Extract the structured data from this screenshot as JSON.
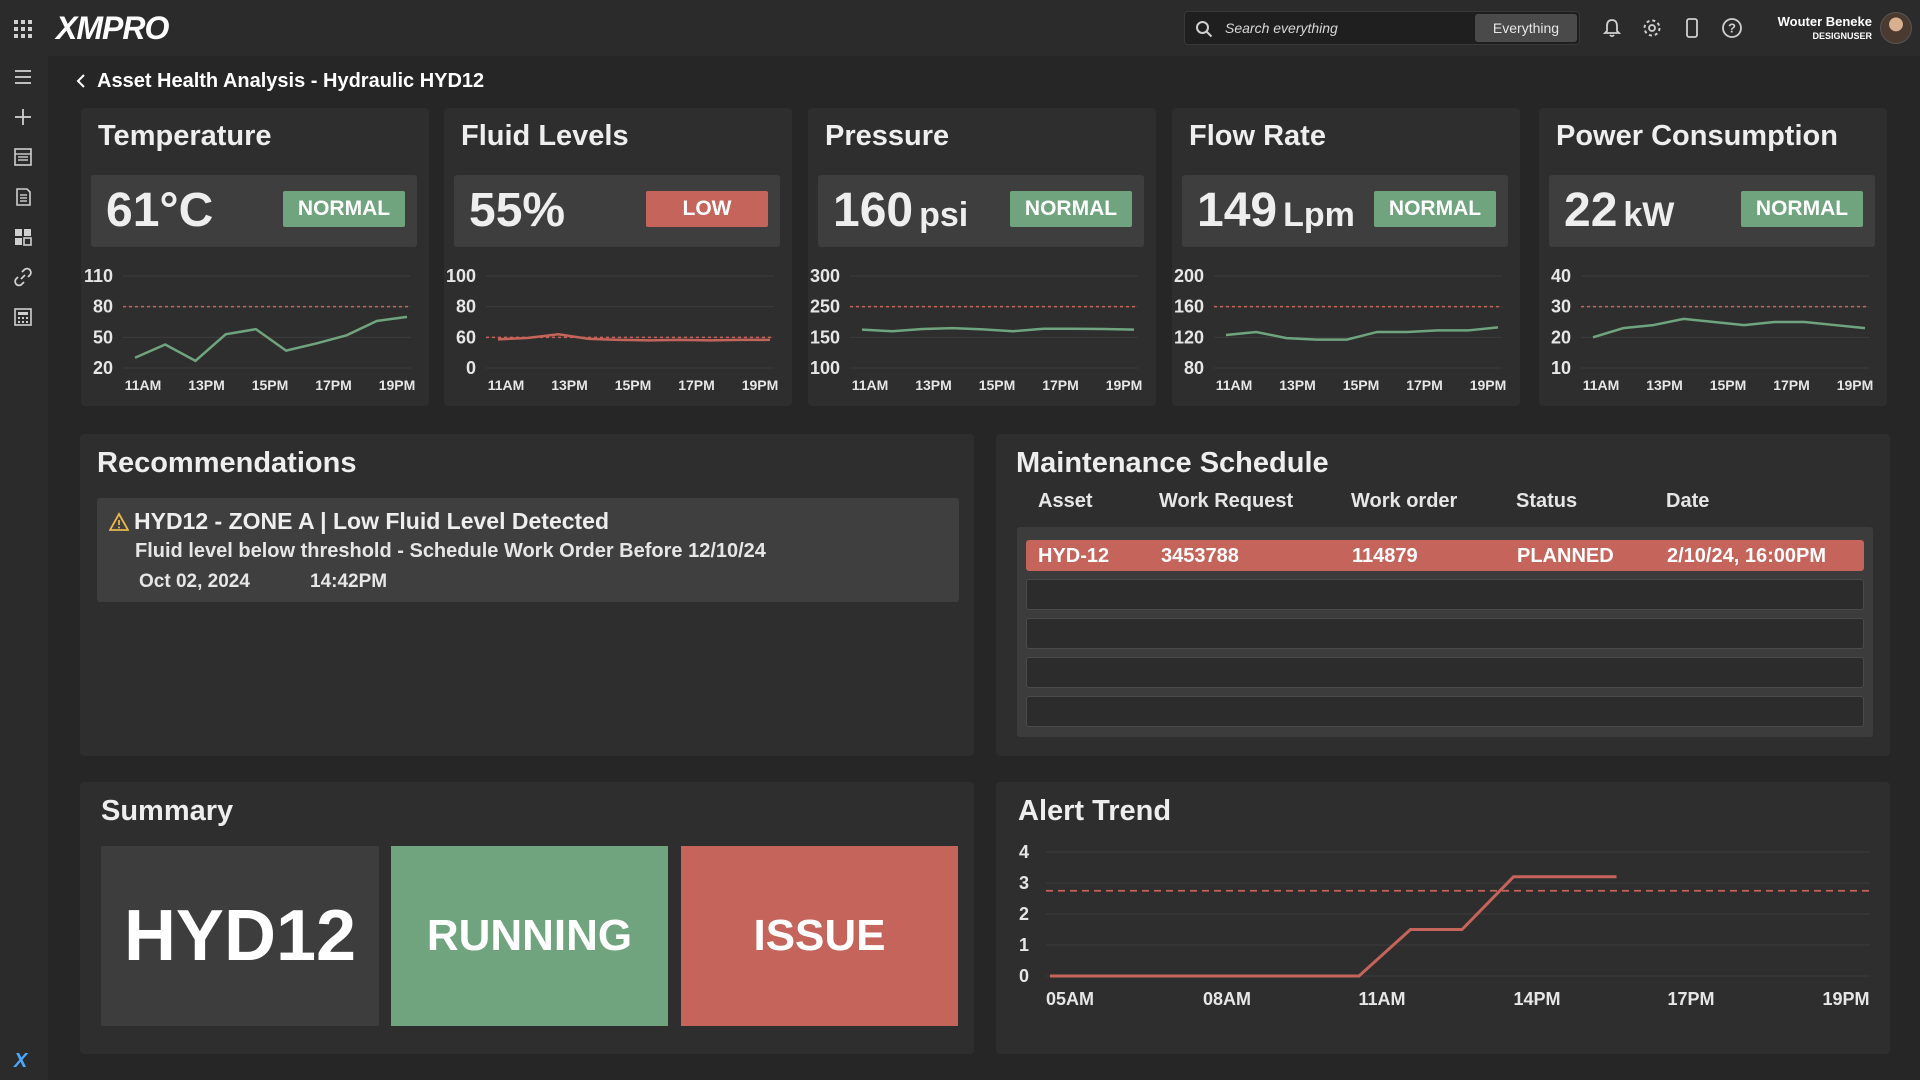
{
  "app": {
    "logo": "XMPRO",
    "sidebar_brand": "X"
  },
  "search": {
    "placeholder": "Search everything",
    "scope": "Everything"
  },
  "user": {
    "name": "Wouter Beneke",
    "role": "DESIGNUSER"
  },
  "page": {
    "title": "Asset Health Analysis - Hydraulic HYD12"
  },
  "colors": {
    "normal": "#6fa47e",
    "alert": "#c4645a",
    "line_green": "#6fa47e",
    "line_red": "#c4645a",
    "threshold": "#c4645a"
  },
  "kpis": [
    {
      "title": "Temperature",
      "value": "61°C",
      "unit": "",
      "status": "NORMAL",
      "status_type": "ok",
      "chart_data": {
        "type": "line",
        "x": [
          "11AM",
          "12PM",
          "13PM",
          "14PM",
          "15PM",
          "16PM",
          "17PM",
          "18PM",
          "19PM",
          "20PM"
        ],
        "values": [
          30,
          43,
          27,
          53,
          58,
          37,
          44,
          52,
          66,
          70
        ],
        "threshold": 80,
        "ylim": [
          20,
          110
        ],
        "yticks": [
          "110",
          "80",
          "50",
          "20"
        ],
        "xtick_labels": [
          "11AM",
          "13PM",
          "15PM",
          "17PM",
          "19PM"
        ],
        "color": "green"
      }
    },
    {
      "title": "Fluid Levels",
      "value": "55%",
      "unit": "",
      "status": "LOW",
      "status_type": "bad",
      "chart_data": {
        "type": "line",
        "x": [
          "11AM",
          "12PM",
          "13PM",
          "14PM",
          "15PM",
          "16PM",
          "17PM",
          "18PM",
          "19PM",
          "20PM"
        ],
        "values": [
          56,
          59,
          62,
          57,
          55,
          54,
          55,
          54,
          55,
          55
        ],
        "threshold": 60,
        "ylim": [
          0,
          100
        ],
        "yticks": [
          "100",
          "80",
          "60",
          "0"
        ],
        "xtick_labels": [
          "11AM",
          "13PM",
          "15PM",
          "17PM",
          "19PM"
        ],
        "color": "red"
      }
    },
    {
      "title": "Pressure",
      "value": "160",
      "unit": "psi",
      "status": "NORMAL",
      "status_type": "ok",
      "chart_data": {
        "type": "line",
        "x": [
          "11AM",
          "12PM",
          "13PM",
          "14PM",
          "15PM",
          "16PM",
          "17PM",
          "18PM",
          "19PM",
          "20PM"
        ],
        "values": [
          175,
          170,
          177,
          180,
          176,
          170,
          178,
          178,
          177,
          175
        ],
        "threshold": 250,
        "ylim": [
          100,
          300
        ],
        "yticks": [
          "300",
          "250",
          "150",
          "100"
        ],
        "xtick_labels": [
          "11AM",
          "13PM",
          "15PM",
          "17PM",
          "19PM"
        ],
        "color": "green"
      }
    },
    {
      "title": "Flow Rate",
      "value": "149",
      "unit": "Lpm",
      "status": "NORMAL",
      "status_type": "ok",
      "chart_data": {
        "type": "line",
        "x": [
          "11AM",
          "12PM",
          "13PM",
          "14PM",
          "15PM",
          "16PM",
          "17PM",
          "18PM",
          "19PM",
          "20PM"
        ],
        "values": [
          123,
          127,
          119,
          117,
          117,
          127,
          127,
          129,
          129,
          133
        ],
        "threshold": 160,
        "ylim": [
          80,
          200
        ],
        "yticks": [
          "200",
          "160",
          "120",
          "80"
        ],
        "xtick_labels": [
          "11AM",
          "13PM",
          "15PM",
          "17PM",
          "19PM"
        ],
        "color": "green"
      }
    },
    {
      "title": "Power Consumption",
      "value": "22",
      "unit": "kW",
      "status": "NORMAL",
      "status_type": "ok",
      "chart_data": {
        "type": "line",
        "x": [
          "11AM",
          "12PM",
          "13PM",
          "14PM",
          "15PM",
          "16PM",
          "17PM",
          "18PM",
          "19PM",
          "20PM"
        ],
        "values": [
          20,
          23,
          24,
          26,
          25,
          24,
          25,
          25,
          24,
          23
        ],
        "threshold": 30,
        "ylim": [
          10,
          40
        ],
        "yticks": [
          "40",
          "30",
          "20",
          "10"
        ],
        "xtick_labels": [
          "11AM",
          "13PM",
          "15PM",
          "17PM",
          "19PM"
        ],
        "color": "green"
      }
    }
  ],
  "recommendations": {
    "title": "Recommendations",
    "items": [
      {
        "heading": "HYD12 - ZONE A | Low Fluid Level Detected",
        "body": "Fluid level below threshold - Schedule Work Order Before 12/10/24",
        "date": "Oct 02, 2024",
        "time": "14:42PM"
      }
    ]
  },
  "maintenance": {
    "title": "Maintenance Schedule",
    "columns": [
      "Asset",
      "Work Request",
      "Work order",
      "Status",
      "Date"
    ],
    "rows": [
      [
        "HYD-12",
        "3453788",
        "114879",
        "PLANNED",
        "2/10/24, 16:00PM"
      ]
    ]
  },
  "summary": {
    "title": "Summary",
    "asset": "HYD12",
    "state": "RUNNING",
    "issue": "ISSUE"
  },
  "alert_trend": {
    "title": "Alert Trend",
    "chart_data": {
      "type": "line",
      "x": [
        "05AM",
        "06AM",
        "07AM",
        "08AM",
        "09AM",
        "10AM",
        "11AM",
        "12PM",
        "13PM",
        "14PM",
        "15PM",
        "16PM"
      ],
      "values": [
        0,
        0,
        0,
        0,
        0,
        0,
        0,
        1.5,
        1.5,
        3.2,
        3.2,
        3.2
      ],
      "threshold": 2.75,
      "ylim": [
        0,
        4
      ],
      "yticks": [
        "4",
        "3",
        "2",
        "1",
        "0"
      ],
      "xtick_labels": [
        "05AM",
        "08AM",
        "11AM",
        "14PM",
        "17PM",
        "19PM"
      ],
      "color": "red"
    }
  }
}
